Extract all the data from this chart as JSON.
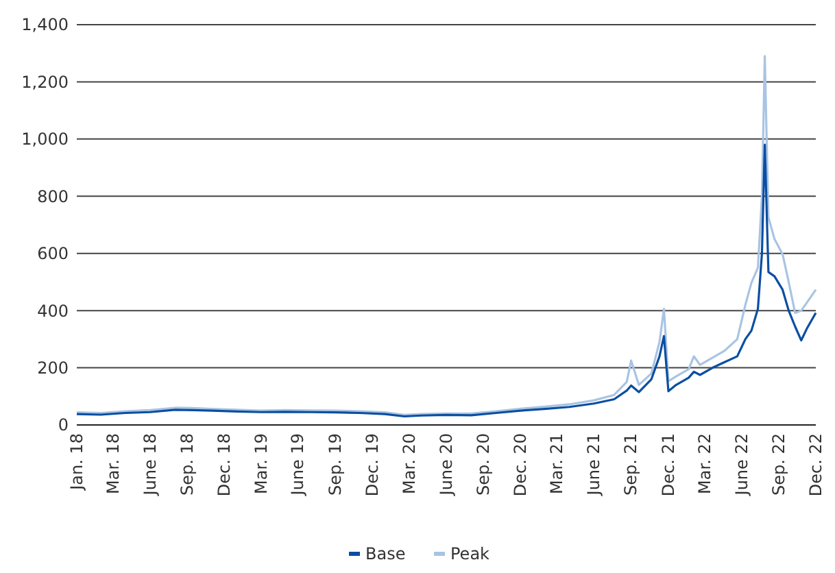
{
  "chart_data": {
    "type": "line",
    "x": [
      "2018-01-01",
      "2018-03-01",
      "2018-05-01",
      "2018-07-01",
      "2018-09-01",
      "2018-10-15",
      "2018-12-01",
      "2019-02-01",
      "2019-04-01",
      "2019-06-01",
      "2019-08-01",
      "2019-10-01",
      "2019-12-01",
      "2020-02-01",
      "2020-03-20",
      "2020-05-01",
      "2020-07-01",
      "2020-09-01",
      "2020-11-01",
      "2021-01-01",
      "2021-03-01",
      "2021-05-01",
      "2021-07-01",
      "2021-08-20",
      "2021-09-20",
      "2021-10-01",
      "2021-10-20",
      "2021-11-20",
      "2021-12-10",
      "2021-12-21",
      "2022-01-01",
      "2022-01-20",
      "2022-02-20",
      "2022-03-05",
      "2022-03-20",
      "2022-04-20",
      "2022-05-20",
      "2022-06-20",
      "2022-07-10",
      "2022-07-25",
      "2022-08-10",
      "2022-08-20",
      "2022-08-27",
      "2022-09-05",
      "2022-09-20",
      "2022-10-10",
      "2022-10-25",
      "2022-11-10",
      "2022-11-25",
      "2022-12-10",
      "2022-12-31"
    ],
    "series": [
      {
        "name": "Base",
        "color": "#0a4ea2",
        "values": [
          38,
          36,
          42,
          45,
          53,
          52,
          50,
          47,
          45,
          46,
          45,
          44,
          42,
          38,
          30,
          33,
          35,
          34,
          42,
          50,
          56,
          63,
          75,
          90,
          120,
          138,
          115,
          160,
          240,
          311,
          118,
          140,
          165,
          186,
          175,
          200,
          220,
          240,
          300,
          330,
          406,
          600,
          980,
          535,
          520,
          473,
          400,
          344,
          296,
          340,
          392
        ]
      },
      {
        "name": "Peak",
        "color": "#a9c4e3",
        "values": [
          44,
          42,
          48,
          52,
          60,
          59,
          56,
          53,
          50,
          52,
          51,
          50,
          48,
          44,
          35,
          38,
          40,
          40,
          48,
          57,
          64,
          72,
          86,
          105,
          150,
          225,
          140,
          180,
          290,
          406,
          153,
          170,
          195,
          240,
          210,
          235,
          260,
          300,
          420,
          497,
          550,
          800,
          1290,
          726,
          650,
          597,
          500,
          392,
          400,
          430,
          473
        ]
      }
    ],
    "xlim": [
      "2018-01-01",
      "2022-12-31"
    ],
    "xticks": [
      {
        "value": "2018-01-01",
        "label": "Jan. 18"
      },
      {
        "value": "2018-03-31",
        "label": "Mar. 18"
      },
      {
        "value": "2018-06-30",
        "label": "June 18"
      },
      {
        "value": "2018-09-30",
        "label": "Sep. 18"
      },
      {
        "value": "2018-12-31",
        "label": "Dec. 18"
      },
      {
        "value": "2019-03-31",
        "label": "Mar. 19"
      },
      {
        "value": "2019-06-30",
        "label": "June 19"
      },
      {
        "value": "2019-09-30",
        "label": "Sep. 19"
      },
      {
        "value": "2019-12-31",
        "label": "Dec. 19"
      },
      {
        "value": "2020-03-31",
        "label": "Mar. 20"
      },
      {
        "value": "2020-06-30",
        "label": "June 20"
      },
      {
        "value": "2020-09-30",
        "label": "Sep. 20"
      },
      {
        "value": "2020-12-31",
        "label": "Dec. 20"
      },
      {
        "value": "2021-03-31",
        "label": "Mar. 21"
      },
      {
        "value": "2021-06-30",
        "label": "June 21"
      },
      {
        "value": "2021-09-30",
        "label": "Sep. 21"
      },
      {
        "value": "2021-12-31",
        "label": "Dec. 21"
      },
      {
        "value": "2022-03-31",
        "label": "Mar. 22"
      },
      {
        "value": "2022-06-30",
        "label": "June 22"
      },
      {
        "value": "2022-09-30",
        "label": "Sep. 22"
      },
      {
        "value": "2022-12-31",
        "label": "Dec. 22"
      }
    ],
    "ylim": [
      0,
      1400
    ],
    "yticks": [
      {
        "value": 0,
        "label": "0"
      },
      {
        "value": 200,
        "label": "200"
      },
      {
        "value": 400,
        "label": "400"
      },
      {
        "value": 600,
        "label": "600"
      },
      {
        "value": 800,
        "label": "800"
      },
      {
        "value": 1000,
        "label": "1,000"
      },
      {
        "value": 1200,
        "label": "1,200"
      },
      {
        "value": 1400,
        "label": "1,400"
      }
    ],
    "grid": "y",
    "legend": "bottom",
    "marker": "none",
    "line_style": "solid"
  }
}
